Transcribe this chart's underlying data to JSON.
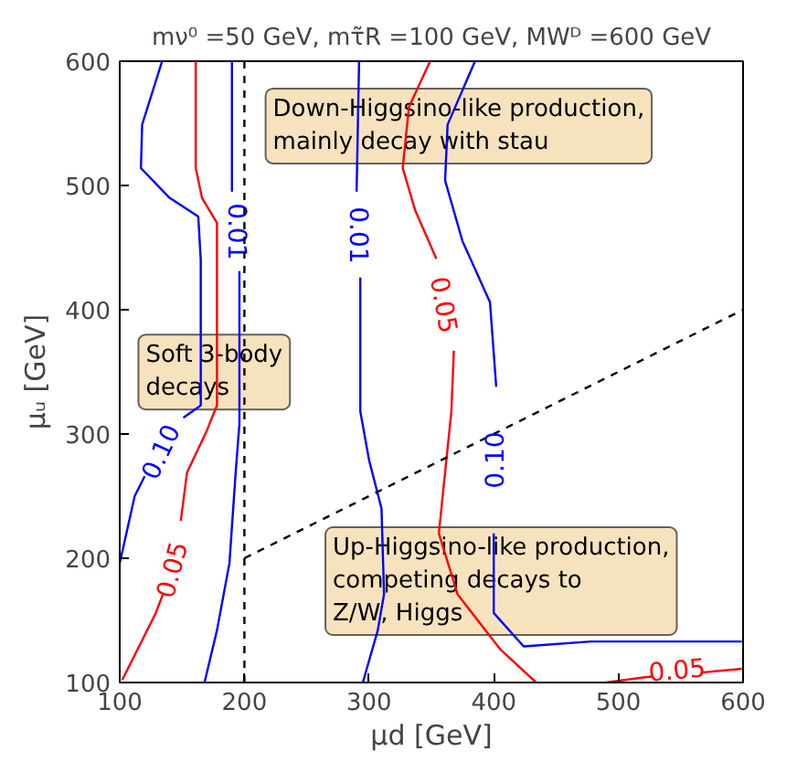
{
  "chart_data": {
    "type": "line",
    "title": "mν⁰ =50 GeV, mτ̃R =100 GeV, MWᴰ =600 GeV",
    "xlabel": "μd [GeV]",
    "ylabel": "μᵤ [GeV]",
    "xlim": [
      100,
      600
    ],
    "ylim": [
      100,
      600
    ],
    "xticks": [
      100,
      200,
      300,
      400,
      500,
      600
    ],
    "yticks": [
      100,
      200,
      300,
      400,
      500,
      600
    ],
    "grid": false,
    "series": [
      {
        "color": "#0000ff",
        "x": [
          134,
          118,
          117,
          140,
          163,
          165,
          165,
          151
        ],
        "values": [
          600,
          549,
          514,
          490,
          475,
          440,
          323,
          313
        ]
      },
      {
        "color": "#0000ff",
        "x": [
          120,
          112,
          100
        ],
        "values": [
          266,
          250,
          196
        ]
      },
      {
        "color": "#ff0000",
        "x": [
          161,
          161,
          166,
          178,
          178,
          170,
          154,
          149
        ],
        "values": [
          600,
          514,
          490,
          470,
          323,
          303,
          269,
          230
        ]
      },
      {
        "color": "#ff0000",
        "x": [
          135,
          129,
          102
        ],
        "values": [
          172,
          156,
          102
        ]
      },
      {
        "color": "#0000ff",
        "x": [
          190,
          190
        ],
        "values": [
          600,
          495
        ]
      },
      {
        "color": "#0000ff",
        "x": [
          196,
          196,
          193,
          188,
          178,
          168
        ],
        "values": [
          431,
          308,
          269,
          196,
          142,
          100
        ]
      },
      {
        "color": "#0000ff",
        "x": [
          292,
          290
        ],
        "values": [
          600,
          495
        ]
      },
      {
        "color": "#0000ff",
        "x": [
          293,
          293,
          300,
          310,
          312,
          307,
          295
        ],
        "values": [
          426,
          318,
          279,
          240,
          171,
          142,
          100
        ]
      },
      {
        "color": "#ff0000",
        "x": [
          349,
          332,
          327,
          337,
          354
        ],
        "values": [
          600,
          563,
          514,
          480,
          441
        ]
      },
      {
        "color": "#ff0000",
        "x": [
          368,
          366,
          361,
          356,
          371,
          405,
          434
        ],
        "values": [
          367,
          318,
          269,
          220,
          171,
          127,
          100
        ]
      },
      {
        "color": "#ff0000",
        "x": [
          490,
          520,
          528
        ],
        "values": [
          100,
          104,
          105
        ]
      },
      {
        "color": "#ff0000",
        "x": [
          566,
          599
        ],
        "values": [
          108,
          111
        ]
      },
      {
        "color": "#0000ff",
        "x": [
          385,
          363,
          361,
          375,
          397,
          402
        ],
        "values": [
          600,
          549,
          504,
          455,
          406,
          338
        ]
      },
      {
        "color": "#0000ff",
        "x": [
          400,
          400,
          424,
          478,
          599
        ],
        "values": [
          220,
          156,
          129,
          133,
          133
        ]
      },
      {
        "color": "#000000",
        "line_style": "dashed",
        "x": [
          200,
          600
        ],
        "values": [
          200,
          400
        ]
      }
    ],
    "ref_lines": [
      {
        "axis": "x",
        "value": 200,
        "color": "#000000",
        "line_style": "dashed"
      }
    ],
    "annotations": [
      "0.10",
      "0.05",
      "0.01",
      "0.01",
      "0.05",
      "0.10",
      "0.05",
      "Down-Higgsino-like production,\nmainly decay with stau",
      "Soft 3-body\ndecays",
      "Up-Higgsino-like production,\ncompeting decays to\nZ/W, Higgs"
    ]
  }
}
